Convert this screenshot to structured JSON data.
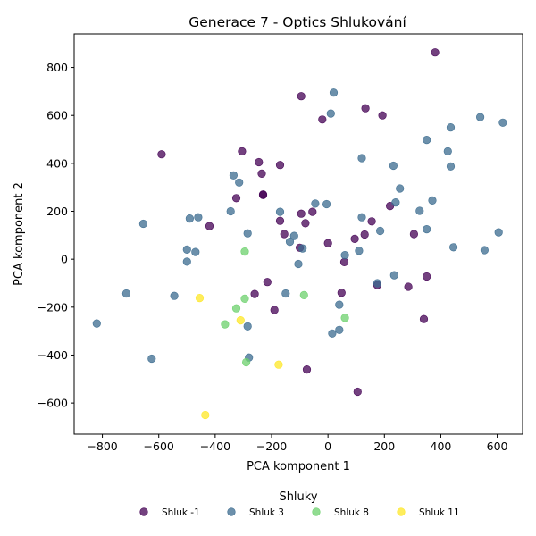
{
  "chart_data": {
    "type": "scatter",
    "title": "Generace 7 - Optics Shlukování",
    "xlabel": "PCA komponent 1",
    "ylabel": "PCA komponent 2",
    "xlim": [
      -900,
      690
    ],
    "ylim": [
      -730,
      940
    ],
    "xticks": [
      -800,
      -600,
      -400,
      -200,
      0,
      200,
      400,
      600
    ],
    "yticks": [
      -600,
      -400,
      -200,
      0,
      200,
      400,
      600,
      800
    ],
    "grid": false,
    "legend": {
      "title": "Shluky",
      "placement": "bottom-center"
    },
    "series": [
      {
        "name": "Shluk -1",
        "color": "#440154",
        "points": [
          [
            380,
            863
          ],
          [
            -95,
            680
          ],
          [
            133,
            630
          ],
          [
            -20,
            583
          ],
          [
            193,
            600
          ],
          [
            -590,
            438
          ],
          [
            -305,
            450
          ],
          [
            -245,
            405
          ],
          [
            -170,
            393
          ],
          [
            -235,
            357
          ],
          [
            -325,
            255
          ],
          [
            -230,
            270
          ],
          [
            -230,
            268
          ],
          [
            220,
            222
          ],
          [
            -55,
            198
          ],
          [
            -95,
            190
          ],
          [
            -170,
            160
          ],
          [
            -80,
            150
          ],
          [
            155,
            158
          ],
          [
            -420,
            138
          ],
          [
            -155,
            105
          ],
          [
            305,
            105
          ],
          [
            130,
            103
          ],
          [
            95,
            85
          ],
          [
            -100,
            48
          ],
          [
            0,
            67
          ],
          [
            58,
            -12
          ],
          [
            285,
            -115
          ],
          [
            175,
            -108
          ],
          [
            350,
            -72
          ],
          [
            -215,
            -95
          ],
          [
            -260,
            -145
          ],
          [
            48,
            -140
          ],
          [
            -190,
            -212
          ],
          [
            340,
            -250
          ],
          [
            -75,
            -460
          ],
          [
            105,
            -553
          ]
        ]
      },
      {
        "name": "Shluk 3",
        "color": "#3b6b8f",
        "points": [
          [
            20,
            695
          ],
          [
            10,
            608
          ],
          [
            435,
            550
          ],
          [
            540,
            593
          ],
          [
            620,
            570
          ],
          [
            350,
            498
          ],
          [
            425,
            450
          ],
          [
            120,
            422
          ],
          [
            232,
            390
          ],
          [
            435,
            387
          ],
          [
            -335,
            350
          ],
          [
            -315,
            320
          ],
          [
            255,
            295
          ],
          [
            370,
            245
          ],
          [
            240,
            237
          ],
          [
            -45,
            232
          ],
          [
            -5,
            230
          ],
          [
            325,
            202
          ],
          [
            -170,
            198
          ],
          [
            -345,
            200
          ],
          [
            -460,
            175
          ],
          [
            -490,
            170
          ],
          [
            120,
            175
          ],
          [
            -655,
            148
          ],
          [
            185,
            118
          ],
          [
            350,
            125
          ],
          [
            605,
            112
          ],
          [
            -285,
            108
          ],
          [
            -120,
            97
          ],
          [
            -135,
            73
          ],
          [
            -90,
            45
          ],
          [
            445,
            50
          ],
          [
            555,
            38
          ],
          [
            110,
            35
          ],
          [
            -470,
            30
          ],
          [
            -500,
            40
          ],
          [
            60,
            17
          ],
          [
            -500,
            -10
          ],
          [
            -105,
            -20
          ],
          [
            235,
            -67
          ],
          [
            175,
            -100
          ],
          [
            -715,
            -143
          ],
          [
            -545,
            -153
          ],
          [
            -150,
            -143
          ],
          [
            40,
            -190
          ],
          [
            -820,
            -268
          ],
          [
            -285,
            -280
          ],
          [
            40,
            -295
          ],
          [
            15,
            -310
          ],
          [
            -625,
            -415
          ],
          [
            -280,
            -410
          ]
        ]
      },
      {
        "name": "Shluk 8",
        "color": "#6cd06c",
        "points": [
          [
            -295,
            32
          ],
          [
            -295,
            -165
          ],
          [
            -85,
            -150
          ],
          [
            -325,
            -205
          ],
          [
            60,
            -245
          ],
          [
            -365,
            -272
          ],
          [
            -290,
            -430
          ]
        ]
      },
      {
        "name": "Shluk 11",
        "color": "#fde725",
        "points": [
          [
            -455,
            -162
          ],
          [
            -310,
            -255
          ],
          [
            -175,
            -440
          ],
          [
            -435,
            -650
          ]
        ]
      }
    ]
  }
}
